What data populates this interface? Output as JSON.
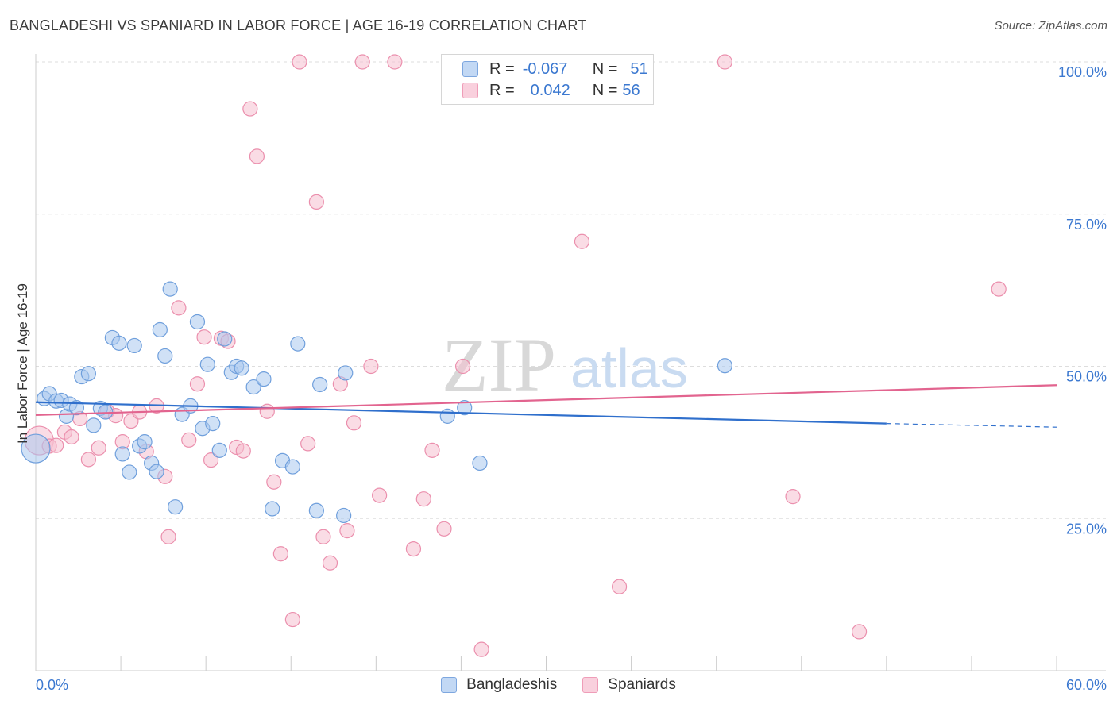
{
  "header": {
    "title": "BANGLADESHI VS SPANIARD IN LABOR FORCE | AGE 16-19 CORRELATION CHART",
    "source": "Source: ZipAtlas.com"
  },
  "legend": {
    "rows": [
      {
        "r_label": "R =",
        "r_value": "-0.067",
        "n_label": "N =",
        "n_value": "51"
      },
      {
        "r_label": "R =",
        "r_value": "0.042",
        "n_label": "N =",
        "n_value": "56"
      }
    ]
  },
  "bottom_legend": {
    "items": [
      "Bangladeshis",
      "Spaniards"
    ]
  },
  "watermark": {
    "zip": "ZIP",
    "atlas": "atlas"
  },
  "colors": {
    "blue_fill": "#a9c8ef",
    "blue_stroke": "#6f9fdc",
    "blue_line": "#2f6fcc",
    "pink_fill": "#f6bfd0",
    "pink_stroke": "#eb8fad",
    "pink_line": "#e2648f",
    "tick_text": "#3b78d0",
    "grid": "#dddddd"
  },
  "chart_data": {
    "type": "scatter",
    "title": "BANGLADESHI VS SPANIARD IN LABOR FORCE | AGE 16-19 CORRELATION CHART",
    "ylabel": "In Labor Force | Age 16-19",
    "xlabel": "",
    "xlim": [
      0,
      60
    ],
    "ylim": [
      0,
      100
    ],
    "x_tick_labels": [
      "0.0%",
      "60.0%"
    ],
    "y_ticks": [
      25,
      50,
      75,
      100
    ],
    "y_tick_labels": [
      "25.0%",
      "50.0%",
      "75.0%",
      "100.0%"
    ],
    "grid": "horizontal dashed",
    "legend_position": "top-center",
    "series": [
      {
        "name": "Bangladeshis",
        "R": -0.067,
        "N": 51,
        "trend": {
          "x": [
            0,
            50
          ],
          "y": [
            44.1,
            40.6
          ],
          "dashed_to_x": 60,
          "dashed_to_y": 40.0
        },
        "points": [
          [
            0,
            36.5,
            2
          ],
          [
            0.5,
            44.7,
            1
          ],
          [
            0.8,
            45.5,
            1
          ],
          [
            1.2,
            44.3,
            1
          ],
          [
            1.5,
            44.4,
            1
          ],
          [
            1.8,
            41.8,
            1
          ],
          [
            2.0,
            43.8,
            1
          ],
          [
            2.4,
            43.2,
            1
          ],
          [
            2.7,
            48.3,
            1
          ],
          [
            3.1,
            48.8,
            1
          ],
          [
            3.4,
            40.3,
            1
          ],
          [
            3.8,
            43.1,
            1
          ],
          [
            4.1,
            42.5,
            1
          ],
          [
            4.5,
            54.7,
            1
          ],
          [
            4.9,
            53.8,
            1
          ],
          [
            5.1,
            35.6,
            1
          ],
          [
            5.5,
            32.6,
            1
          ],
          [
            5.8,
            53.4,
            1
          ],
          [
            6.1,
            36.9,
            1
          ],
          [
            6.4,
            37.6,
            1
          ],
          [
            6.8,
            34.1,
            1
          ],
          [
            7.1,
            32.7,
            1
          ],
          [
            7.3,
            56.0,
            1
          ],
          [
            7.6,
            51.7,
            1
          ],
          [
            7.9,
            62.7,
            1
          ],
          [
            8.2,
            26.9,
            1
          ],
          [
            8.6,
            42.1,
            1
          ],
          [
            9.1,
            43.5,
            1
          ],
          [
            9.5,
            57.3,
            1
          ],
          [
            9.8,
            39.8,
            1
          ],
          [
            10.1,
            50.3,
            1
          ],
          [
            10.4,
            40.6,
            1
          ],
          [
            10.8,
            36.2,
            1
          ],
          [
            11.1,
            54.5,
            1
          ],
          [
            11.5,
            49.0,
            1
          ],
          [
            11.8,
            50.0,
            1
          ],
          [
            12.1,
            49.7,
            1
          ],
          [
            12.8,
            46.6,
            1
          ],
          [
            13.4,
            47.9,
            1
          ],
          [
            13.9,
            26.6,
            1
          ],
          [
            14.5,
            34.5,
            1
          ],
          [
            15.1,
            33.5,
            1
          ],
          [
            15.4,
            53.7,
            1
          ],
          [
            16.5,
            26.3,
            1
          ],
          [
            16.7,
            47.0,
            1
          ],
          [
            18.1,
            25.5,
            1
          ],
          [
            18.2,
            48.9,
            1
          ],
          [
            24.2,
            41.8,
            1
          ],
          [
            25.2,
            43.2,
            1
          ],
          [
            26.1,
            34.1,
            1
          ],
          [
            40.5,
            50.1,
            1
          ]
        ]
      },
      {
        "name": "Spaniards",
        "R": 0.042,
        "N": 56,
        "trend": {
          "x": [
            0,
            60
          ],
          "y": [
            42.0,
            46.9
          ]
        },
        "points": [
          [
            0.2,
            37.8,
            2
          ],
          [
            0.8,
            36.9,
            1
          ],
          [
            1.2,
            37.0,
            1
          ],
          [
            1.7,
            39.2,
            1
          ],
          [
            2.1,
            38.4,
            1
          ],
          [
            2.6,
            41.4,
            1
          ],
          [
            3.1,
            34.7,
            1
          ],
          [
            3.7,
            36.6,
            1
          ],
          [
            4.2,
            42.6,
            1
          ],
          [
            4.7,
            41.9,
            1
          ],
          [
            5.1,
            37.6,
            1
          ],
          [
            5.6,
            41.0,
            1
          ],
          [
            6.1,
            42.5,
            1
          ],
          [
            6.5,
            36.0,
            1
          ],
          [
            7.1,
            43.5,
            1
          ],
          [
            7.6,
            31.9,
            1
          ],
          [
            7.8,
            22.0,
            1
          ],
          [
            8.4,
            59.6,
            1
          ],
          [
            9.0,
            37.9,
            1
          ],
          [
            9.5,
            47.1,
            1
          ],
          [
            9.9,
            54.8,
            1
          ],
          [
            10.3,
            34.6,
            1
          ],
          [
            10.9,
            54.6,
            1
          ],
          [
            11.3,
            54.1,
            1
          ],
          [
            11.8,
            36.7,
            1
          ],
          [
            12.2,
            36.1,
            1
          ],
          [
            12.6,
            92.3,
            1
          ],
          [
            13.0,
            84.5,
            1
          ],
          [
            13.6,
            42.6,
            1
          ],
          [
            14.0,
            31.0,
            1
          ],
          [
            14.4,
            19.2,
            1
          ],
          [
            15.1,
            8.4,
            1
          ],
          [
            15.5,
            100.0,
            1
          ],
          [
            16.0,
            37.3,
            1
          ],
          [
            16.5,
            77.0,
            1
          ],
          [
            16.9,
            22.0,
            1
          ],
          [
            17.3,
            17.7,
            1
          ],
          [
            17.9,
            47.1,
            1
          ],
          [
            18.3,
            23.0,
            1
          ],
          [
            18.7,
            40.7,
            1
          ],
          [
            19.2,
            100.0,
            1
          ],
          [
            19.7,
            50.0,
            1
          ],
          [
            20.2,
            28.8,
            1
          ],
          [
            21.1,
            100.0,
            1
          ],
          [
            22.2,
            20.0,
            1
          ],
          [
            22.8,
            28.2,
            1
          ],
          [
            23.3,
            36.2,
            1
          ],
          [
            24.0,
            23.3,
            1
          ],
          [
            25.1,
            50.0,
            1
          ],
          [
            26.2,
            3.5,
            1
          ],
          [
            32.1,
            70.5,
            1
          ],
          [
            34.3,
            13.8,
            1
          ],
          [
            40.5,
            100.0,
            1
          ],
          [
            44.5,
            28.6,
            1
          ],
          [
            48.4,
            6.4,
            1
          ],
          [
            56.6,
            62.7,
            1
          ]
        ]
      }
    ]
  }
}
